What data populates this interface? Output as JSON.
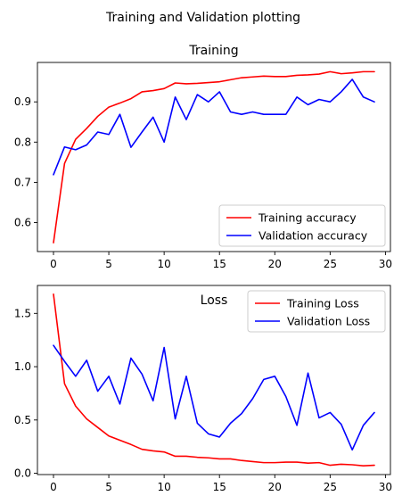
{
  "figure": {
    "suptitle": "Training and Validation plotting"
  },
  "chart_data": [
    {
      "type": "line",
      "title": "Training",
      "xlabel": "",
      "ylabel": "",
      "xlim": [
        -1.45,
        30.45
      ],
      "ylim": [
        0.528,
        0.998
      ],
      "xticks": [
        0,
        5,
        10,
        15,
        20,
        25,
        30
      ],
      "yticks": [
        0.6,
        0.7,
        0.8,
        0.9
      ],
      "ytick_labels": [
        "0.6",
        "0.7",
        "0.8",
        "0.9"
      ],
      "legend_position": "lower-right",
      "x": [
        0,
        1,
        2,
        3,
        4,
        5,
        6,
        7,
        8,
        9,
        10,
        11,
        12,
        13,
        14,
        15,
        16,
        17,
        18,
        19,
        20,
        21,
        22,
        23,
        24,
        25,
        26,
        27,
        28,
        29
      ],
      "series": [
        {
          "name": "Training accuracy",
          "color": "#ff0000",
          "values": [
            0.55,
            0.747,
            0.807,
            0.834,
            0.864,
            0.887,
            0.897,
            0.908,
            0.925,
            0.928,
            0.933,
            0.947,
            0.945,
            0.946,
            0.948,
            0.95,
            0.955,
            0.96,
            0.962,
            0.964,
            0.963,
            0.963,
            0.966,
            0.967,
            0.969,
            0.975,
            0.97,
            0.972,
            0.975,
            0.975
          ]
        },
        {
          "name": "Validation accuracy",
          "color": "#0000ff",
          "values": [
            0.719,
            0.788,
            0.781,
            0.793,
            0.825,
            0.819,
            0.869,
            0.787,
            0.825,
            0.862,
            0.8,
            0.912,
            0.856,
            0.918,
            0.9,
            0.925,
            0.875,
            0.869,
            0.875,
            0.869,
            0.869,
            0.869,
            0.912,
            0.893,
            0.906,
            0.9,
            0.925,
            0.956,
            0.912,
            0.9
          ]
        }
      ]
    },
    {
      "type": "line",
      "title": "Loss",
      "xlabel": "",
      "ylabel": "",
      "xlim": [
        -1.45,
        30.45
      ],
      "ylim": [
        -0.012,
        1.762
      ],
      "xticks": [
        0,
        5,
        10,
        15,
        20,
        25,
        30
      ],
      "yticks": [
        0.0,
        0.5,
        1.0,
        1.5
      ],
      "ytick_labels": [
        "0.0",
        "0.5",
        "1.0",
        "1.5"
      ],
      "legend_position": "upper-right",
      "x": [
        0,
        1,
        2,
        3,
        4,
        5,
        6,
        7,
        8,
        9,
        10,
        11,
        12,
        13,
        14,
        15,
        16,
        17,
        18,
        19,
        20,
        21,
        22,
        23,
        24,
        25,
        26,
        27,
        28,
        29
      ],
      "series": [
        {
          "name": "Training Loss",
          "color": "#ff0000",
          "values": [
            1.68,
            0.84,
            0.63,
            0.51,
            0.43,
            0.35,
            0.31,
            0.27,
            0.225,
            0.21,
            0.2,
            0.16,
            0.16,
            0.15,
            0.145,
            0.135,
            0.135,
            0.12,
            0.11,
            0.1,
            0.1,
            0.105,
            0.105,
            0.095,
            0.1,
            0.075,
            0.085,
            0.08,
            0.07,
            0.075
          ]
        },
        {
          "name": "Validation Loss",
          "color": "#0000ff",
          "values": [
            1.2,
            1.05,
            0.91,
            1.06,
            0.77,
            0.91,
            0.65,
            1.08,
            0.93,
            0.68,
            1.18,
            0.51,
            0.91,
            0.47,
            0.37,
            0.34,
            0.47,
            0.56,
            0.7,
            0.88,
            0.91,
            0.72,
            0.45,
            0.94,
            0.52,
            0.57,
            0.46,
            0.22,
            0.45,
            0.57
          ]
        }
      ]
    }
  ]
}
